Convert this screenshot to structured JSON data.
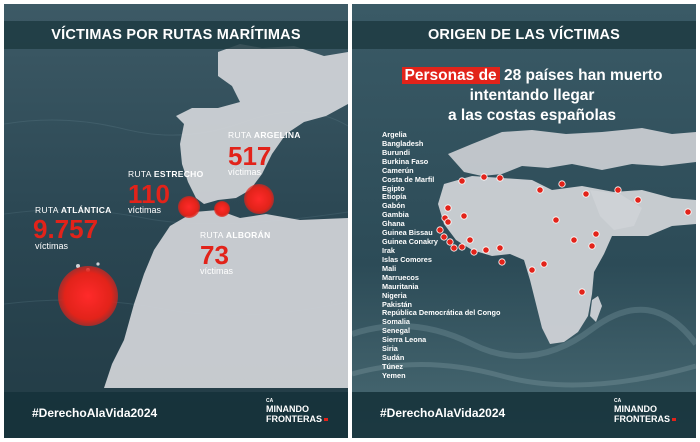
{
  "left_panel": {
    "title": "VÍCTIMAS POR RUTAS MARÍTIMAS",
    "routes": [
      {
        "prefix": "RUTA ",
        "name": "ATLÁNTICA",
        "count": "9.757",
        "unit": "víctimas"
      },
      {
        "prefix": "RUTA ",
        "name": "ESTRECHO",
        "count": "110",
        "unit": "víctimas"
      },
      {
        "prefix": "RUTA ",
        "name": "ARGELINA",
        "count": "517",
        "unit": "víctimas"
      },
      {
        "prefix": "RUTA ",
        "name": "ALBORÁN",
        "count": "73",
        "unit": "víctimas"
      }
    ],
    "hashtag": "#DerechoAlaVida2024"
  },
  "right_panel": {
    "title": "ORIGEN DE LAS VÍCTIMAS",
    "headline_highlight": "Personas de",
    "headline_line1_rest": " 28 países han muerto",
    "headline_line2": "intentando llegar",
    "headline_line3": "a las costas españolas",
    "countries": [
      "Argelia",
      "Bangladesh",
      "Burundi",
      "Burkina Faso",
      "Camerún",
      "Costa de Marfil",
      "Egipto",
      "Etiopía",
      "Gabón",
      "Gambia",
      "Ghana",
      "Guinea Bissau",
      "Guinea Conakry",
      "Irak",
      "Islas Comores",
      "Mali",
      "Marruecos",
      "Mauritania",
      "Nigeria",
      "Pakistán",
      "República Democrática del Congo",
      "Somalia",
      "Senegal",
      "Sierra Leona",
      "Siria",
      "Sudán",
      "Túnez",
      "Yemen"
    ],
    "hashtag": "#DerechoAlaVida2024"
  },
  "logo": {
    "top": "CA",
    "line1": "MINANDO",
    "line2": "FRONTERAS"
  },
  "colors": {
    "accent": "#e2231a",
    "header_bg": "#1f3b42",
    "sea": "#2d4a55",
    "land": "#c9ccd1"
  }
}
